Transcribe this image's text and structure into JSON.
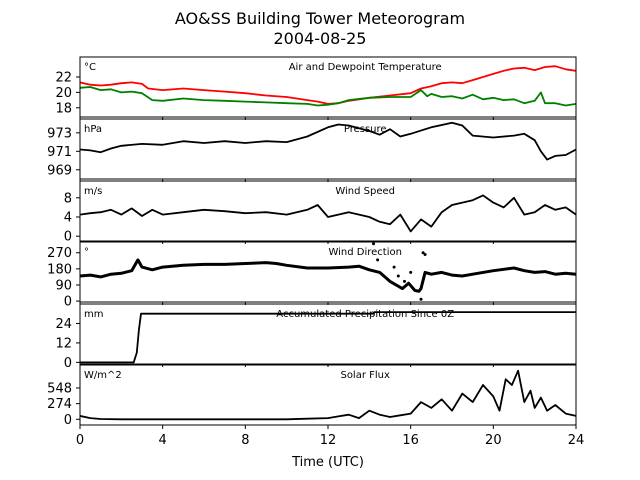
{
  "title": "AO&SS Building Tower Meteorogram",
  "subtitle": "2004-08-25",
  "chart_data": {
    "type": "line",
    "xlabel": "Time (UTC)",
    "xlim": [
      0,
      24
    ],
    "xticks": [
      "0",
      "4",
      "8",
      "12",
      "16",
      "20",
      "24"
    ],
    "panels": [
      {
        "title": "Air and Dewpoint Temperature",
        "unit": "°C",
        "ylim": [
          16.8,
          24.6
        ],
        "yticks": [
          "18",
          "20",
          "22"
        ],
        "series": [
          {
            "color": "#ff0000",
            "x": [
              0,
              0.5,
              1,
              1.5,
              2,
              2.5,
              3,
              3.3,
              4,
              5,
              6,
              7,
              8,
              9,
              10,
              11,
              11.5,
              12,
              12.5,
              13,
              14,
              15,
              16,
              16.5,
              17,
              17.5,
              18,
              18.5,
              19,
              20,
              20.5,
              21,
              21.5,
              22,
              22.5,
              23,
              23.5,
              24
            ],
            "y": [
              21.3,
              21.0,
              20.9,
              21.0,
              21.2,
              21.3,
              21.1,
              20.5,
              20.3,
              20.5,
              20.3,
              20.1,
              19.9,
              19.6,
              19.4,
              19.0,
              18.8,
              18.5,
              18.6,
              18.9,
              19.3,
              19.6,
              19.9,
              20.5,
              20.8,
              21.2,
              21.3,
              21.2,
              21.6,
              22.4,
              22.8,
              23.1,
              23.2,
              22.9,
              23.3,
              23.4,
              23.0,
              22.8
            ]
          },
          {
            "color": "#008000",
            "x": [
              0,
              0.5,
              1,
              1.5,
              2,
              2.5,
              3,
              3.5,
              4,
              5,
              6,
              7,
              8,
              9,
              10,
              11,
              11.5,
              12,
              12.5,
              13,
              14,
              15,
              16,
              16.5,
              16.8,
              17,
              17.5,
              18,
              18.5,
              19,
              19.5,
              20,
              20.5,
              21,
              21.5,
              22,
              22.3,
              22.5,
              23,
              23.5,
              24
            ],
            "y": [
              20.6,
              20.7,
              20.3,
              20.4,
              20.0,
              20.1,
              19.9,
              19.0,
              18.9,
              19.2,
              19.0,
              18.9,
              18.8,
              18.7,
              18.6,
              18.5,
              18.3,
              18.4,
              18.6,
              19.0,
              19.3,
              19.4,
              19.4,
              20.3,
              19.5,
              19.8,
              19.4,
              19.5,
              19.2,
              19.7,
              19.1,
              19.3,
              19.0,
              19.1,
              18.6,
              18.9,
              20.0,
              18.6,
              18.6,
              18.3,
              18.5
            ]
          }
        ]
      },
      {
        "title": "Pressure",
        "unit": "hPa",
        "ylim": [
          968.0,
          974.5
        ],
        "yticks": [
          "969",
          "971",
          "973"
        ],
        "series": [
          {
            "color": "#000000",
            "x": [
              0,
              0.5,
              1,
              1.5,
              2,
              3,
              4,
              5,
              6,
              7,
              8,
              9,
              10,
              11,
              12,
              12.5,
              13,
              14,
              14.5,
              15,
              15.5,
              16,
              17,
              18,
              18.5,
              19,
              20,
              21,
              21.5,
              22,
              22.3,
              22.6,
              23,
              23.5,
              24
            ],
            "y": [
              971.2,
              971.1,
              970.9,
              971.3,
              971.6,
              971.8,
              971.7,
              972.1,
              971.9,
              972.1,
              971.9,
              972.1,
              972.0,
              972.6,
              973.6,
              973.9,
              973.8,
              973.2,
              972.8,
              973.4,
              972.6,
              972.9,
              973.6,
              974.1,
              973.8,
              972.7,
              972.5,
              972.7,
              972.9,
              972.2,
              971.0,
              970.1,
              970.5,
              970.6,
              971.2
            ]
          }
        ]
      },
      {
        "title": "Wind Speed",
        "unit": "m/s",
        "ylim": [
          -1.0,
          11.5
        ],
        "yticks": [
          "0",
          "4",
          "8"
        ],
        "series": [
          {
            "color": "#000000",
            "x": [
              0,
              0.5,
              1,
              1.5,
              2,
              2.5,
              3,
              3.5,
              4,
              5,
              6,
              7,
              8,
              9,
              10,
              11,
              11.5,
              12,
              13,
              14,
              14.5,
              15,
              15.5,
              16,
              16.5,
              17,
              17.5,
              18,
              18.5,
              19,
              19.5,
              20,
              20.5,
              21,
              21.5,
              22,
              22.5,
              23,
              23.5,
              24
            ],
            "y": [
              4.5,
              4.8,
              5.0,
              5.5,
              4.5,
              5.8,
              4.2,
              5.5,
              4.5,
              5.0,
              5.5,
              5.2,
              4.8,
              5.0,
              4.5,
              5.5,
              6.5,
              4.0,
              5.0,
              4.0,
              3.0,
              2.5,
              4.5,
              1.0,
              3.5,
              2.0,
              5.0,
              6.5,
              7.0,
              7.5,
              8.5,
              7.0,
              6.0,
              8.0,
              4.5,
              5.0,
              6.5,
              5.5,
              6.0,
              4.5
            ]
          }
        ]
      },
      {
        "title": "Wind Direction",
        "unit": "°",
        "ylim": [
          -5,
          330
        ],
        "yticks": [
          "0",
          "90",
          "180",
          "270"
        ],
        "series": [
          {
            "color": "#000000",
            "marker": "dot",
            "x": [
              0,
              0.5,
              1,
              1.5,
              2,
              2.5,
              2.8,
              3.0,
              3.5,
              4,
              5,
              6,
              7,
              8,
              9,
              9.5,
              10,
              11,
              12,
              13,
              13.5,
              14,
              14.5,
              15,
              15.3,
              15.6,
              15.9,
              16.2,
              16.4,
              16.5,
              16.7,
              17,
              17.5,
              18,
              18.5,
              19,
              20,
              21,
              21.5,
              22,
              22.5,
              23,
              23.5,
              24
            ],
            "y": [
              140,
              145,
              135,
              150,
              155,
              170,
              230,
              190,
              175,
              190,
              200,
              205,
              205,
              210,
              215,
              210,
              200,
              185,
              185,
              190,
              195,
              175,
              160,
              110,
              90,
              70,
              100,
              60,
              55,
              70,
              160,
              150,
              160,
              145,
              140,
              150,
              170,
              185,
              170,
              160,
              165,
              150,
              155,
              150
            ]
          },
          {
            "color": "#000000",
            "marker": "scatter",
            "x": [
              14.2,
              14.4,
              15.2,
              15.4,
              15.7,
              16.0,
              16.5,
              16.6,
              16.7
            ],
            "y": [
              320,
              230,
              190,
              140,
              110,
              160,
              10,
              270,
              260
            ]
          }
        ]
      },
      {
        "title": "Accumulated Precipitation Since 0Z",
        "unit": "mm",
        "ylim": [
          -1,
          36
        ],
        "yticks": [
          "0",
          "12",
          "24"
        ],
        "series": [
          {
            "color": "#000000",
            "x": [
              0,
              2.6,
              2.75,
              2.85,
              2.95,
              3.0,
              14.2,
              14.25,
              24
            ],
            "y": [
              0,
              0,
              6,
              20,
              30,
              30,
              30,
              31,
              31
            ]
          }
        ]
      },
      {
        "title": "Solar Flux",
        "unit": "W/m^2",
        "ylim": [
          -100,
          950
        ],
        "yticks": [
          "0",
          "274",
          "548"
        ],
        "series": [
          {
            "color": "#000000",
            "x": [
              0,
              0.5,
              1,
              2,
              4,
              6,
              8,
              10,
              11,
              12,
              12.5,
              13,
              13.5,
              14,
              14.5,
              15,
              15.5,
              16,
              16.5,
              17,
              17.5,
              18,
              18.5,
              19,
              19.5,
              20,
              20.3,
              20.6,
              20.9,
              21.2,
              21.5,
              21.8,
              22,
              22.3,
              22.6,
              23,
              23.5,
              24
            ],
            "y": [
              60,
              20,
              5,
              0,
              0,
              0,
              0,
              0,
              10,
              20,
              50,
              80,
              20,
              150,
              80,
              40,
              70,
              100,
              300,
              200,
              350,
              150,
              450,
              300,
              600,
              400,
              150,
              700,
              600,
              850,
              300,
              500,
              200,
              380,
              150,
              250,
              100,
              60
            ]
          }
        ]
      }
    ]
  }
}
